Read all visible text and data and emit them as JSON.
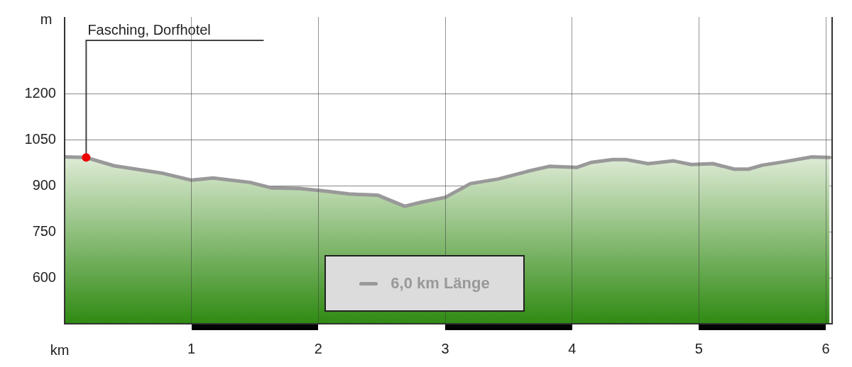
{
  "chart_data": {
    "type": "area",
    "xlabel": "km",
    "ylabel": "m",
    "xlim": [
      0,
      6.05
    ],
    "xticks": [
      1,
      2,
      3,
      4,
      5,
      6
    ],
    "ylim": [
      450,
      1450
    ],
    "yticks": [
      600,
      750,
      900,
      1050,
      1200
    ],
    "grid": true,
    "legend": "bottom",
    "marker": "none",
    "series": [
      {
        "name": "6,0 km Länge",
        "color": "#999999",
        "x": [
          0,
          0.17,
          0.39,
          0.78,
          1.0,
          1.17,
          1.46,
          1.63,
          1.85,
          2.07,
          2.24,
          2.47,
          2.68,
          2.81,
          3.0,
          3.2,
          3.42,
          3.65,
          3.82,
          4.04,
          4.15,
          4.32,
          4.43,
          4.6,
          4.8,
          4.94,
          5.11,
          5.28,
          5.39,
          5.5,
          5.67,
          5.89,
          6.03
        ],
        "values": [
          994,
          992,
          965,
          940,
          918,
          925,
          911,
          893,
          891,
          882,
          873,
          869,
          833,
          846,
          862,
          907,
          922,
          947,
          963,
          960,
          976,
          985,
          985,
          972,
          981,
          969,
          972,
          954,
          954,
          967,
          978,
          994,
          992
        ]
      }
    ],
    "annotations": [
      {
        "text": "Fasching, Dorfhotel",
        "x": 0.17,
        "y": 992
      }
    ]
  }
}
